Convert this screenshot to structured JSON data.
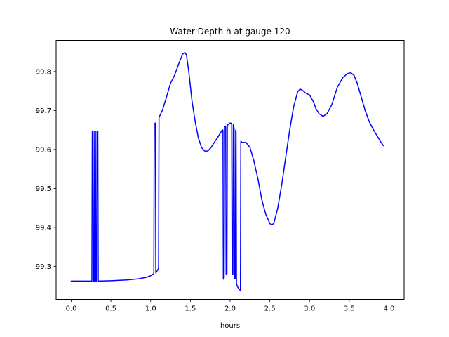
{
  "chart_data": {
    "type": "line",
    "title": "Water Depth h at gauge 120",
    "xlabel": "hours",
    "ylabel": "",
    "xlim": [
      -0.19,
      4.19
    ],
    "ylim": [
      99.215,
      99.88
    ],
    "xticks": [
      0.0,
      0.5,
      1.0,
      1.5,
      2.0,
      2.5,
      3.0,
      3.5,
      4.0
    ],
    "xtick_labels": [
      "0.0",
      "0.5",
      "1.0",
      "1.5",
      "2.0",
      "2.5",
      "3.0",
      "3.5",
      "4.0"
    ],
    "yticks": [
      99.3,
      99.4,
      99.5,
      99.6,
      99.7,
      99.8
    ],
    "ytick_labels": [
      "99.3",
      "99.4",
      "99.5",
      "99.6",
      "99.7",
      "99.8"
    ],
    "grid": false,
    "legend": "none",
    "series": [
      {
        "color": "#0000ff",
        "points": [
          [
            0.0,
            99.262
          ],
          [
            0.26,
            99.262
          ],
          [
            0.265,
            99.647
          ],
          [
            0.275,
            99.647
          ],
          [
            0.28,
            99.262
          ],
          [
            0.29,
            99.262
          ],
          [
            0.295,
            99.647
          ],
          [
            0.305,
            99.647
          ],
          [
            0.31,
            99.262
          ],
          [
            0.32,
            99.262
          ],
          [
            0.325,
            99.647
          ],
          [
            0.335,
            99.647
          ],
          [
            0.34,
            99.262
          ],
          [
            0.5,
            99.263
          ],
          [
            0.7,
            99.265
          ],
          [
            0.85,
            99.268
          ],
          [
            0.95,
            99.272
          ],
          [
            1.0,
            99.276
          ],
          [
            1.04,
            99.281
          ],
          [
            1.045,
            99.664
          ],
          [
            1.06,
            99.668
          ],
          [
            1.065,
            99.283
          ],
          [
            1.1,
            99.295
          ],
          [
            1.105,
            99.682
          ],
          [
            1.15,
            99.702
          ],
          [
            1.2,
            99.735
          ],
          [
            1.25,
            99.77
          ],
          [
            1.3,
            99.79
          ],
          [
            1.35,
            99.818
          ],
          [
            1.4,
            99.844
          ],
          [
            1.43,
            99.849
          ],
          [
            1.45,
            99.843
          ],
          [
            1.48,
            99.8
          ],
          [
            1.52,
            99.725
          ],
          [
            1.56,
            99.672
          ],
          [
            1.6,
            99.63
          ],
          [
            1.64,
            99.605
          ],
          [
            1.68,
            99.596
          ],
          [
            1.72,
            99.596
          ],
          [
            1.76,
            99.605
          ],
          [
            1.8,
            99.618
          ],
          [
            1.85,
            99.633
          ],
          [
            1.9,
            99.65
          ],
          [
            1.91,
            99.65
          ],
          [
            1.915,
            99.267
          ],
          [
            1.925,
            99.27
          ],
          [
            1.93,
            99.658
          ],
          [
            1.945,
            99.66
          ],
          [
            1.95,
            99.28
          ],
          [
            1.96,
            99.282
          ],
          [
            1.965,
            99.662
          ],
          [
            2.0,
            99.668
          ],
          [
            2.02,
            99.667
          ],
          [
            2.025,
            99.279
          ],
          [
            2.035,
            99.28
          ],
          [
            2.04,
            99.664
          ],
          [
            2.05,
            99.655
          ],
          [
            2.055,
            99.27
          ],
          [
            2.065,
            99.268
          ],
          [
            2.07,
            99.65
          ],
          [
            2.075,
            99.645
          ],
          [
            2.08,
            99.255
          ],
          [
            2.1,
            99.245
          ],
          [
            2.13,
            99.238
          ],
          [
            2.135,
            99.621
          ],
          [
            2.15,
            99.618
          ],
          [
            2.2,
            99.618
          ],
          [
            2.25,
            99.605
          ],
          [
            2.3,
            99.57
          ],
          [
            2.35,
            99.525
          ],
          [
            2.4,
            99.47
          ],
          [
            2.45,
            99.433
          ],
          [
            2.5,
            99.41
          ],
          [
            2.52,
            99.406
          ],
          [
            2.55,
            99.41
          ],
          [
            2.6,
            99.45
          ],
          [
            2.65,
            99.51
          ],
          [
            2.7,
            99.58
          ],
          [
            2.75,
            99.65
          ],
          [
            2.8,
            99.71
          ],
          [
            2.85,
            99.748
          ],
          [
            2.88,
            99.755
          ],
          [
            2.91,
            99.752
          ],
          [
            2.95,
            99.745
          ],
          [
            3.0,
            99.74
          ],
          [
            3.05,
            99.722
          ],
          [
            3.08,
            99.705
          ],
          [
            3.12,
            99.692
          ],
          [
            3.17,
            99.685
          ],
          [
            3.22,
            99.692
          ],
          [
            3.28,
            99.715
          ],
          [
            3.35,
            99.76
          ],
          [
            3.42,
            99.785
          ],
          [
            3.48,
            99.795
          ],
          [
            3.52,
            99.797
          ],
          [
            3.56,
            99.79
          ],
          [
            3.6,
            99.77
          ],
          [
            3.65,
            99.735
          ],
          [
            3.7,
            99.7
          ],
          [
            3.75,
            99.672
          ],
          [
            3.8,
            99.652
          ],
          [
            3.85,
            99.635
          ],
          [
            3.9,
            99.618
          ],
          [
            3.93,
            99.61
          ]
        ]
      }
    ]
  }
}
